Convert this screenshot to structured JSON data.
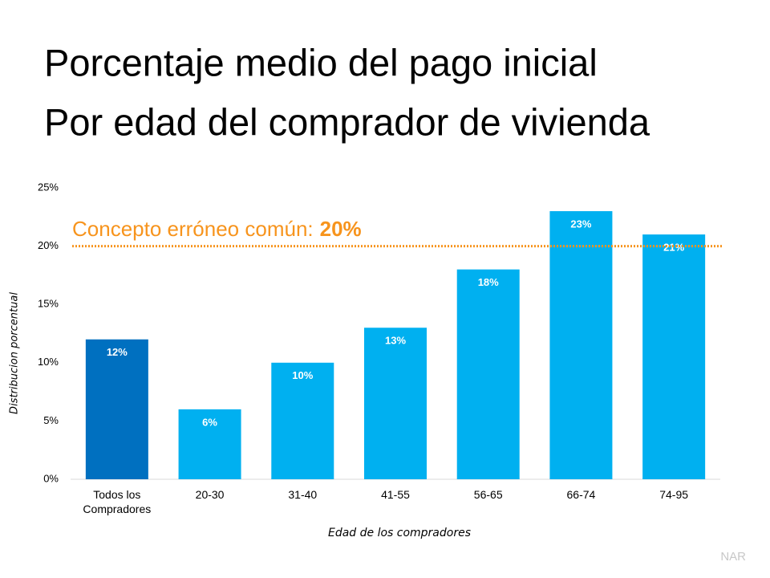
{
  "chart_data": {
    "type": "bar",
    "title": [
      "Porcentaje medio del pago inicial",
      "Por edad del comprador de vivienda"
    ],
    "categories": [
      "Todos los Compradores",
      "20-30",
      "31-40",
      "41-55",
      "56-65",
      "66-74",
      "74-95"
    ],
    "values": [
      12,
      6,
      10,
      13,
      18,
      23,
      21
    ],
    "value_labels": [
      "12%",
      "6%",
      "10%",
      "13%",
      "18%",
      "23%",
      "21%"
    ],
    "colors": [
      "#0070c0",
      "#00b0f0",
      "#00b0f0",
      "#00b0f0",
      "#00b0f0",
      "#00b0f0",
      "#00b0f0"
    ],
    "ylim": [
      0,
      25
    ],
    "yticks": [
      {
        "value": 0,
        "label": "0%"
      },
      {
        "value": 5,
        "label": "5%"
      },
      {
        "value": 10,
        "label": "10%"
      },
      {
        "value": 15,
        "label": "15%"
      },
      {
        "value": 20,
        "label": "20%"
      },
      {
        "value": 25,
        "label": "25%"
      }
    ],
    "y_label": "Distribucion porcentual",
    "x_label": "Edad de los compradores",
    "reference_line": {
      "text": "Concepto erróneo común:",
      "value": 20,
      "label": "20%",
      "color": "#f7941d"
    },
    "source": "NAR",
    "grid": false
  }
}
